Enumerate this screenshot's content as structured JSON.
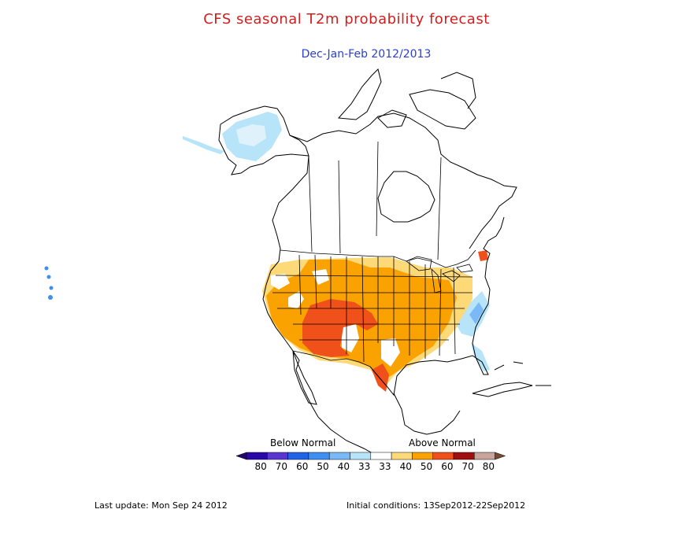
{
  "title": "CFS seasonal T2m probability forecast",
  "subtitle": "Dec-Jan-Feb 2012/2013",
  "colors": {
    "title": "#d21e1e",
    "subtitle": "#2a3fd0",
    "coast": "#000000",
    "state_lines": "#000000"
  },
  "legend": {
    "below_label": "Below Normal",
    "above_label": "Above Normal",
    "bins": [
      {
        "label": "80",
        "color": "#2a08a8"
      },
      {
        "label": "70",
        "color": "#5a36d0"
      },
      {
        "label": "60",
        "color": "#1f63e6"
      },
      {
        "label": "50",
        "color": "#3f8ef2"
      },
      {
        "label": "40",
        "color": "#79b9f7"
      },
      {
        "label": "33",
        "color": "#b7e4f9"
      },
      {
        "label": "33",
        "color": "#ffffff"
      },
      {
        "label": "40",
        "color": "#fdd978"
      },
      {
        "label": "50",
        "color": "#f9a200"
      },
      {
        "label": "60",
        "color": "#f0501a"
      },
      {
        "label": "70",
        "color": "#a00e0e"
      },
      {
        "label": "80",
        "color": "#c8a49a"
      }
    ],
    "end_left_color": "#22056e",
    "end_right_color": "#7a4a30"
  },
  "footer": {
    "last_update": "Last update: Mon Sep 24 2012",
    "initial_conditions": "Initial conditions: 13Sep2012-22Sep2012"
  }
}
